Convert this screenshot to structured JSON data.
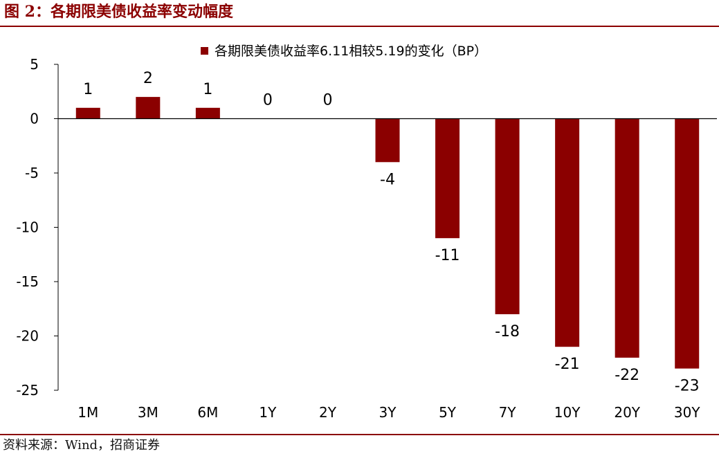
{
  "figure": {
    "title": "图 2：各期限美债收益率变动幅度",
    "source": "资料来源：Wind，招商证券"
  },
  "colors": {
    "accent": "#8b0000",
    "bar": "#8b0000",
    "axis": "#000000"
  },
  "chart_data": {
    "type": "bar",
    "title": "",
    "xlabel": "",
    "ylabel": "",
    "legend_position": "top",
    "grid": false,
    "categories": [
      "1M",
      "3M",
      "6M",
      "1Y",
      "2Y",
      "3Y",
      "5Y",
      "7Y",
      "10Y",
      "20Y",
      "30Y"
    ],
    "series": [
      {
        "name": "各期限美债收益率6.11相较5.19的变化（BP）",
        "values": [
          1,
          2,
          1,
          0,
          0,
          -4,
          -11,
          -18,
          -21,
          -22,
          -23
        ],
        "labels": [
          "1",
          "2",
          "1",
          "0",
          "0",
          "-4",
          "-11",
          "-18",
          "-21",
          "-22",
          "-23"
        ]
      }
    ],
    "ylim": [
      -25,
      5
    ],
    "yticks": [
      5,
      0,
      -5,
      -10,
      -15,
      -20,
      -25
    ],
    "ytick_labels": [
      "5",
      "0",
      "-5",
      "-10",
      "-15",
      "-20",
      "-25"
    ]
  }
}
